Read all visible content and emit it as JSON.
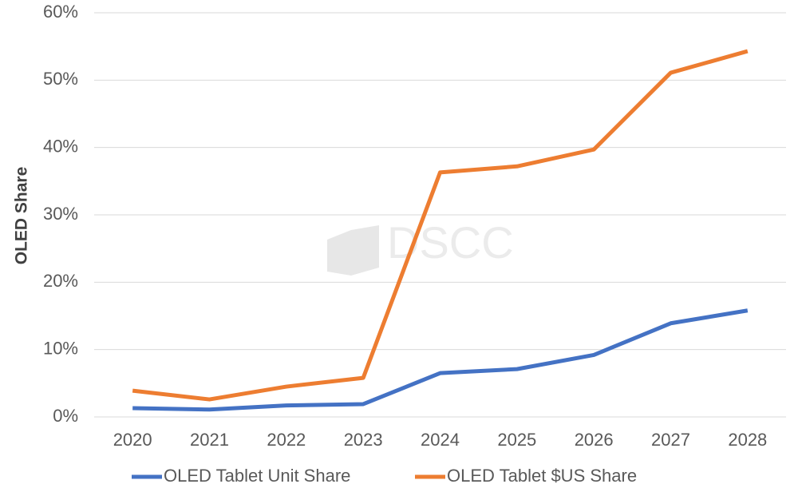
{
  "chart_data": {
    "type": "line",
    "y_label": "OLED Share",
    "watermark": "DSCC",
    "categories": [
      "2020",
      "2021",
      "2022",
      "2023",
      "2024",
      "2025",
      "2026",
      "2027",
      "2028"
    ],
    "series": [
      {
        "name": "OLED Tablet Unit Share",
        "color": "#4472c4",
        "values": [
          1.3,
          1.1,
          1.7,
          1.9,
          6.5,
          7.1,
          9.2,
          13.9,
          15.8
        ]
      },
      {
        "name": "OLED Tablet $US Share",
        "color": "#ed7d31",
        "values": [
          3.9,
          2.6,
          4.5,
          5.8,
          36.3,
          37.2,
          39.7,
          51.1,
          54.3
        ]
      }
    ],
    "ylim": [
      0,
      60
    ],
    "yticks": [
      {
        "value": 0,
        "label": "0%"
      },
      {
        "value": 10,
        "label": "10%"
      },
      {
        "value": 20,
        "label": "20%"
      },
      {
        "value": 30,
        "label": "30%"
      },
      {
        "value": 40,
        "label": "40%"
      },
      {
        "value": 50,
        "label": "50%"
      },
      {
        "value": 60,
        "label": "60%"
      }
    ],
    "grid": true,
    "legend": "bottom"
  }
}
